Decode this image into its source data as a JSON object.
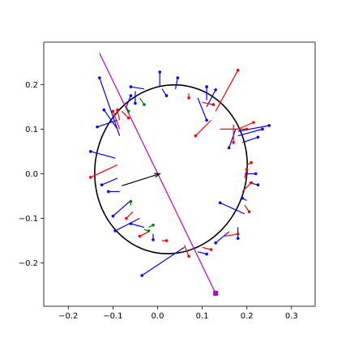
{
  "chart_data": {
    "type": "scatter",
    "title": "",
    "xlabel": "",
    "ylabel": "",
    "xlim": [
      -0.255,
      0.353
    ],
    "ylim": [
      -0.297,
      0.295
    ],
    "xticks": [
      -0.2,
      -0.1,
      0.0,
      0.1,
      0.2,
      0.3
    ],
    "yticks": [
      -0.2,
      -0.1,
      0.0,
      0.1,
      0.2
    ],
    "xtick_labels": [
      "−0.2",
      "−0.1",
      "0.0",
      "0.1",
      "0.2",
      "0.3"
    ],
    "ytick_labels": [
      "−0.2",
      "−0.1",
      "0.0",
      "0.1",
      "0.2"
    ],
    "grid": false,
    "colors": {
      "contour": "#000000",
      "blue": "#0000ff",
      "red": "#ff0000",
      "green": "#008000",
      "line": "#c000c0",
      "marker": "#c000c0"
    },
    "ellipse": {
      "center": [
        0.03,
        0.01
      ],
      "rx": 0.17,
      "ry": 0.19,
      "rotation_deg": -12
    },
    "arrow": {
      "from": [
        -0.08,
        -0.027
      ],
      "to": [
        0.005,
        0.0
      ]
    },
    "magenta_line": {
      "from": [
        -0.13,
        0.27
      ],
      "to": [
        0.13,
        -0.268
      ]
    },
    "magenta_marker": [
      0.13,
      -0.268
    ],
    "segments": [
      {
        "c": "blue",
        "x1": -0.085,
        "y1": 0.085,
        "x2": -0.13,
        "y2": 0.215
      },
      {
        "c": "blue",
        "x1": -0.09,
        "y1": 0.1,
        "x2": -0.12,
        "y2": 0.143
      },
      {
        "c": "blue",
        "x1": -0.09,
        "y1": 0.12,
        "x2": -0.135,
        "y2": 0.105
      },
      {
        "c": "blue",
        "x1": -0.095,
        "y1": 0.035,
        "x2": -0.15,
        "y2": 0.05
      },
      {
        "c": "blue",
        "x1": -0.09,
        "y1": -0.01,
        "x2": -0.125,
        "y2": -0.025
      },
      {
        "c": "blue",
        "x1": -0.085,
        "y1": -0.04,
        "x2": -0.11,
        "y2": -0.04
      },
      {
        "c": "blue",
        "x1": -0.06,
        "y1": -0.06,
        "x2": -0.1,
        "y2": -0.095
      },
      {
        "c": "blue",
        "x1": -0.04,
        "y1": -0.1,
        "x2": -0.095,
        "y2": -0.128
      },
      {
        "c": "blue",
        "x1": -0.03,
        "y1": -0.12,
        "x2": -0.06,
        "y2": -0.112
      },
      {
        "c": "blue",
        "x1": -0.01,
        "y1": -0.135,
        "x2": -0.01,
        "y2": -0.148
      },
      {
        "c": "blue",
        "x1": 0.06,
        "y1": -0.165,
        "x2": -0.035,
        "y2": -0.228
      },
      {
        "c": "blue",
        "x1": 0.09,
        "y1": -0.175,
        "x2": 0.11,
        "y2": -0.18
      },
      {
        "c": "blue",
        "x1": 0.16,
        "y1": -0.13,
        "x2": 0.13,
        "y2": -0.155
      },
      {
        "c": "blue",
        "x1": 0.18,
        "y1": -0.12,
        "x2": 0.18,
        "y2": -0.145
      },
      {
        "c": "blue",
        "x1": 0.195,
        "y1": -0.09,
        "x2": 0.14,
        "y2": -0.065
      },
      {
        "c": "blue",
        "x1": 0.2,
        "y1": -0.06,
        "x2": 0.19,
        "y2": -0.055
      },
      {
        "c": "blue",
        "x1": 0.205,
        "y1": -0.02,
        "x2": 0.225,
        "y2": -0.025
      },
      {
        "c": "blue",
        "x1": 0.195,
        "y1": 0.0,
        "x2": 0.22,
        "y2": 0.0
      },
      {
        "c": "blue",
        "x1": 0.19,
        "y1": 0.07,
        "x2": 0.225,
        "y2": 0.082
      },
      {
        "c": "blue",
        "x1": 0.18,
        "y1": 0.085,
        "x2": 0.235,
        "y2": 0.1
      },
      {
        "c": "blue",
        "x1": 0.18,
        "y1": 0.095,
        "x2": 0.25,
        "y2": 0.108
      },
      {
        "c": "blue",
        "x1": 0.175,
        "y1": 0.1,
        "x2": 0.16,
        "y2": 0.058
      },
      {
        "c": "blue",
        "x1": 0.11,
        "y1": 0.15,
        "x2": 0.13,
        "y2": 0.188
      },
      {
        "c": "blue",
        "x1": 0.11,
        "y1": 0.165,
        "x2": 0.11,
        "y2": 0.195
      },
      {
        "c": "blue",
        "x1": 0.09,
        "y1": 0.17,
        "x2": 0.11,
        "y2": 0.12
      },
      {
        "c": "blue",
        "x1": 0.04,
        "y1": 0.19,
        "x2": 0.045,
        "y2": 0.215
      },
      {
        "c": "blue",
        "x1": 0.005,
        "y1": 0.195,
        "x2": 0.005,
        "y2": 0.228
      },
      {
        "c": "blue",
        "x1": 0.01,
        "y1": 0.19,
        "x2": 0.02,
        "y2": 0.175
      },
      {
        "c": "blue",
        "x1": -0.03,
        "y1": 0.19,
        "x2": -0.06,
        "y2": 0.195
      },
      {
        "c": "blue",
        "x1": -0.05,
        "y1": 0.185,
        "x2": -0.05,
        "y2": 0.158
      },
      {
        "c": "blue",
        "x1": -0.07,
        "y1": 0.15,
        "x2": -0.06,
        "y2": 0.175
      },
      {
        "c": "red",
        "x1": -0.08,
        "y1": 0.14,
        "x2": -0.065,
        "y2": 0.125
      },
      {
        "c": "red",
        "x1": -0.085,
        "y1": 0.1,
        "x2": -0.1,
        "y2": 0.14
      },
      {
        "c": "red",
        "x1": -0.085,
        "y1": 0.12,
        "x2": -0.09,
        "y2": 0.143
      },
      {
        "c": "red",
        "x1": -0.09,
        "y1": 0.02,
        "x2": -0.15,
        "y2": -0.008
      },
      {
        "c": "red",
        "x1": -0.055,
        "y1": -0.085,
        "x2": -0.07,
        "y2": -0.1
      },
      {
        "c": "red",
        "x1": -0.02,
        "y1": -0.13,
        "x2": -0.04,
        "y2": -0.14
      },
      {
        "c": "red",
        "x1": 0.01,
        "y1": -0.15,
        "x2": 0.02,
        "y2": -0.15
      },
      {
        "c": "red",
        "x1": 0.06,
        "y1": -0.16,
        "x2": 0.07,
        "y2": -0.185
      },
      {
        "c": "red",
        "x1": 0.1,
        "y1": -0.165,
        "x2": 0.12,
        "y2": -0.17
      },
      {
        "c": "red",
        "x1": 0.15,
        "y1": -0.14,
        "x2": 0.18,
        "y2": -0.135
      },
      {
        "c": "red",
        "x1": 0.195,
        "y1": -0.07,
        "x2": 0.205,
        "y2": -0.085
      },
      {
        "c": "red",
        "x1": 0.19,
        "y1": -0.04,
        "x2": 0.21,
        "y2": -0.02
      },
      {
        "c": "red",
        "x1": 0.195,
        "y1": -0.01,
        "x2": 0.2,
        "y2": 0.01
      },
      {
        "c": "red",
        "x1": 0.2,
        "y1": 0.02,
        "x2": 0.21,
        "y2": 0.025
      },
      {
        "c": "red",
        "x1": 0.18,
        "y1": 0.1,
        "x2": 0.215,
        "y2": 0.115
      },
      {
        "c": "red",
        "x1": 0.17,
        "y1": 0.11,
        "x2": 0.17,
        "y2": 0.07
      },
      {
        "c": "red",
        "x1": 0.13,
        "y1": 0.14,
        "x2": 0.18,
        "y2": 0.232
      },
      {
        "c": "red",
        "x1": 0.12,
        "y1": 0.12,
        "x2": 0.085,
        "y2": 0.085
      },
      {
        "c": "red",
        "x1": 0.1,
        "y1": 0.16,
        "x2": 0.125,
        "y2": 0.155
      },
      {
        "c": "red",
        "x1": 0.07,
        "y1": 0.18,
        "x2": 0.07,
        "y2": 0.17
      },
      {
        "c": "red",
        "x1": 0.14,
        "y1": 0.1,
        "x2": 0.2,
        "y2": 0.1
      },
      {
        "c": "green",
        "x1": -0.07,
        "y1": 0.15,
        "x2": -0.065,
        "y2": 0.14
      },
      {
        "c": "green",
        "x1": -0.04,
        "y1": 0.17,
        "x2": -0.03,
        "y2": 0.155
      },
      {
        "c": "green",
        "x1": -0.06,
        "y1": -0.07,
        "x2": -0.06,
        "y2": -0.062
      },
      {
        "c": "green",
        "x1": -0.02,
        "y1": -0.12,
        "x2": -0.01,
        "y2": -0.115
      },
      {
        "c": "green",
        "x1": -0.03,
        "y1": -0.125,
        "x2": -0.02,
        "y2": -0.128
      }
    ]
  }
}
